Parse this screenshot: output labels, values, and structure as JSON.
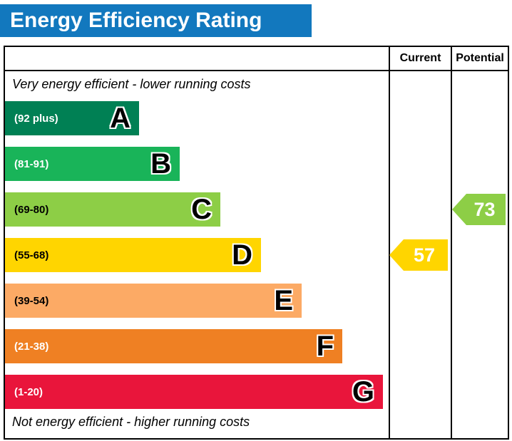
{
  "header": {
    "title": "Energy Efficiency Rating"
  },
  "table": {
    "current_label": "Current",
    "potential_label": "Potential",
    "top_note": "Very energy efficient - lower running costs",
    "bottom_note": "Not energy efficient - higher running costs"
  },
  "bands": [
    {
      "letter": "A",
      "range": "(92 plus)",
      "color": "#008054",
      "label_color": "#ffffff"
    },
    {
      "letter": "B",
      "range": "(81-91)",
      "color": "#19b459",
      "label_color": "#ffffff"
    },
    {
      "letter": "C",
      "range": "(69-80)",
      "color": "#8dce46",
      "label_color": "#000000"
    },
    {
      "letter": "D",
      "range": "(55-68)",
      "color": "#ffd500",
      "label_color": "#000000"
    },
    {
      "letter": "E",
      "range": "(39-54)",
      "color": "#fcaa65",
      "label_color": "#000000"
    },
    {
      "letter": "F",
      "range": "(21-38)",
      "color": "#ef8023",
      "label_color": "#ffffff"
    },
    {
      "letter": "G",
      "range": "(1-20)",
      "color": "#e9153b",
      "label_color": "#ffffff"
    }
  ],
  "current": {
    "value": "57",
    "color": "#ffd500",
    "band_index": 3
  },
  "potential": {
    "value": "73",
    "color": "#8dce46",
    "band_index": 2
  },
  "colors": {
    "header_bg": "#1278be",
    "border": "#000000"
  },
  "chart_data": {
    "type": "bar",
    "title": "Energy Efficiency Rating",
    "categories": [
      "A (92 plus)",
      "B (81-91)",
      "C (69-80)",
      "D (55-68)",
      "E (39-54)",
      "F (21-38)",
      "G (1-20)"
    ],
    "series": [
      {
        "name": "Current",
        "value": 57,
        "band": "D"
      },
      {
        "name": "Potential",
        "value": 73,
        "band": "C"
      }
    ],
    "band_colors": [
      "#008054",
      "#19b459",
      "#8dce46",
      "#ffd500",
      "#fcaa65",
      "#ef8023",
      "#e9153b"
    ],
    "annotations": [
      "Very energy efficient - lower running costs",
      "Not energy efficient - higher running costs"
    ],
    "legend_position": "top-right-columns",
    "value_range": [
      1,
      100
    ]
  }
}
